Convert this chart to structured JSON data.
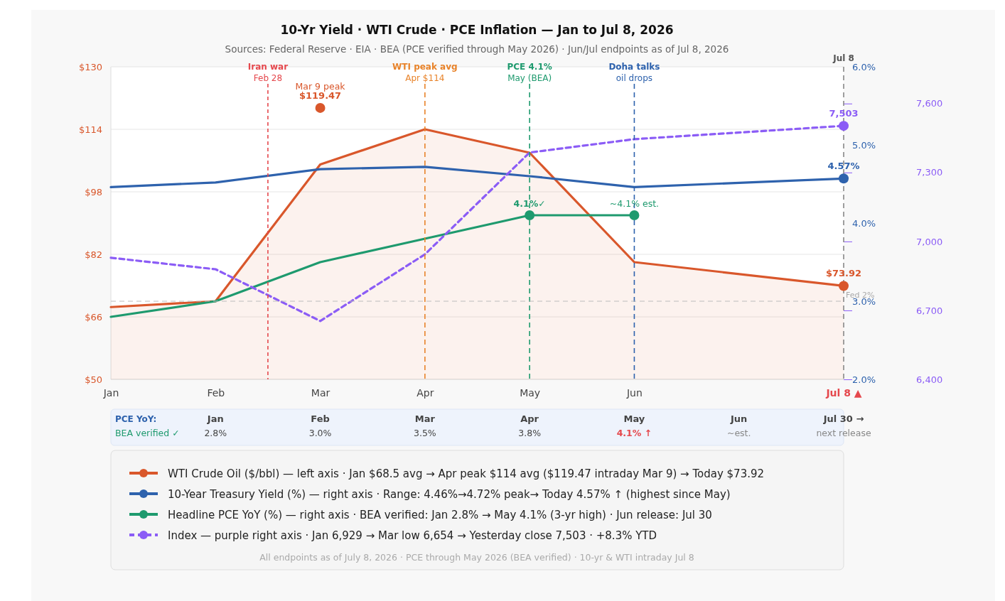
{
  "chart_data": {
    "type": "line",
    "title": "10-Yr Yield · WTI Crude · PCE Inflation — Jan to Jul 8, 2026",
    "subtitle": "Sources: Federal Reserve · EIA · BEA (PCE verified through May 2026) · Jun/Jul endpoints as of Jul 8, 2026",
    "categories": [
      "Jan",
      "Feb",
      "Mar",
      "Apr",
      "May",
      "Jun",
      null,
      "Jul 8 ▲"
    ],
    "ylim": [
      50,
      130
    ],
    "yticks": [
      {
        "value": 50,
        "label": "$50"
      },
      {
        "value": 66,
        "label": "$66"
      },
      {
        "value": 82,
        "label": "$82"
      },
      {
        "value": 98,
        "label": "$98"
      },
      {
        "value": 114,
        "label": "$114"
      },
      {
        "value": 130,
        "label": "$130"
      }
    ],
    "y2lim": [
      2,
      6
    ],
    "y2ticks": [
      {
        "value": 2,
        "label": "2.0%"
      },
      {
        "value": 3,
        "label": "3.0%"
      },
      {
        "value": 4,
        "label": "4.0%"
      },
      {
        "value": 5,
        "label": "5.0%"
      },
      {
        "value": 6,
        "label": "6.0%"
      }
    ],
    "y3lim": [
      6400,
      7760
    ],
    "y3ticks": [
      {
        "value": 6400,
        "label": "6,400"
      },
      {
        "value": 6700,
        "label": "6,700"
      },
      {
        "value": 7000,
        "label": "7,000"
      },
      {
        "value": 7300,
        "label": "7,300"
      },
      {
        "value": 7600,
        "label": "7,600"
      }
    ],
    "grid": "y",
    "legend": "bottom",
    "series": [
      {
        "name": "WTI Crude Oil ($/bbl) — left axis · Jan $68.5 avg → Apr peak $114 avg ($119.47 intraday Mar 9) → Today $73.92",
        "type": "area",
        "color": "#d9572b",
        "values": [
          68.5,
          70,
          105,
          114,
          108,
          80,
          null,
          73.92
        ]
      },
      {
        "name": "10-Year Treasury Yield (%) — right axis · Range: 4.46%→4.72% peak→ Today 4.57% ↑ (highest since May)",
        "axis": "y2",
        "color": "#2e62ad",
        "values": [
          4.46,
          4.52,
          4.69,
          4.72,
          4.6,
          4.46,
          null,
          4.57
        ]
      },
      {
        "name": "Headline PCE YoY (%) — right axis · BEA verified: Jan 2.8% → May 4.1% (3-yr high) · Jun release: Jul 30",
        "axis": "y2",
        "color": "#1e9a6e",
        "values": [
          2.8,
          3.0,
          3.5,
          3.8,
          4.1,
          4.1,
          null,
          null
        ]
      },
      {
        "name": "Index — purple right axis · Jan 6,929 → Mar low 6,654 → Yesterday close 7,503 · +8.3% YTD",
        "axis": "y3",
        "color": "#8b5cf6",
        "line_style": "dashed",
        "values": [
          6929,
          6879,
          6654,
          6944,
          7387,
          7445,
          null,
          7503
        ]
      },
      {
        "type": "scatter",
        "color": "#d9572b",
        "x": [
          "Mar"
        ],
        "values": [
          119.47
        ],
        "value_labels": [
          "$119.47"
        ]
      },
      {
        "type": "scatter",
        "color": "#d9572b",
        "x": [
          "Jul 8 ▲"
        ],
        "values": [
          73.92
        ],
        "value_labels": [
          "$73.92"
        ]
      },
      {
        "type": "scatter",
        "axis": "y2",
        "color": "#2e62ad",
        "x": [
          "Jul 8 ▲"
        ],
        "values": [
          4.57
        ],
        "value_labels": [
          "4.57%"
        ]
      },
      {
        "type": "scatter",
        "axis": "y3",
        "color": "#8b5cf6",
        "x": [
          "Jul 8 ▲"
        ],
        "values": [
          7503
        ],
        "value_labels": [
          "7,503"
        ]
      },
      {
        "type": "scatter",
        "axis": "y2",
        "color": "#1e9a6e",
        "x": [
          "May",
          "Jun"
        ],
        "values": [
          4.1,
          4.1
        ]
      }
    ],
    "ref_lines": [
      {
        "axis": "x",
        "value": "Apr",
        "label": "WTI peak avg\nApr $114",
        "color": "#e8832a",
        "line_style": "dashed"
      },
      {
        "axis": "x",
        "value": "May",
        "label": "PCE 4.1%\nMay (BEA)",
        "color": "#1e9a6e",
        "line_style": "dashed"
      },
      {
        "axis": "x",
        "value": "Jun",
        "label": "Doha talks\noil drops",
        "color": "#2e62ad",
        "line_style": "dashed"
      },
      {
        "axis": "x",
        "value": "Jul 8 ▲",
        "label": "Jul 8",
        "color": "#888888",
        "line_style": "dashed"
      },
      {
        "axis": "y2",
        "value": 3,
        "label": "Fed 2%",
        "color": "#bbbbbb",
        "line_style": "dashed"
      }
    ],
    "annotations": [
      "PCE YoY:",
      "BEA verified ✓",
      "Jul 30 →",
      "next release",
      "All endpoints as of July 8, 2026 · PCE through May 2026 (BEA verified) · 10-yr & WTI intraday Jul 8",
      "4.1%✓",
      "~4.1% est.",
      "Iran war",
      "Feb 28",
      "2.8%",
      "3.0%",
      "3.5%",
      "3.8%",
      "4.1% ↑",
      "~est.",
      {
        "text": "Mar 9 peak",
        "x": "Mar",
        "y": 119.47
      }
    ]
  }
}
